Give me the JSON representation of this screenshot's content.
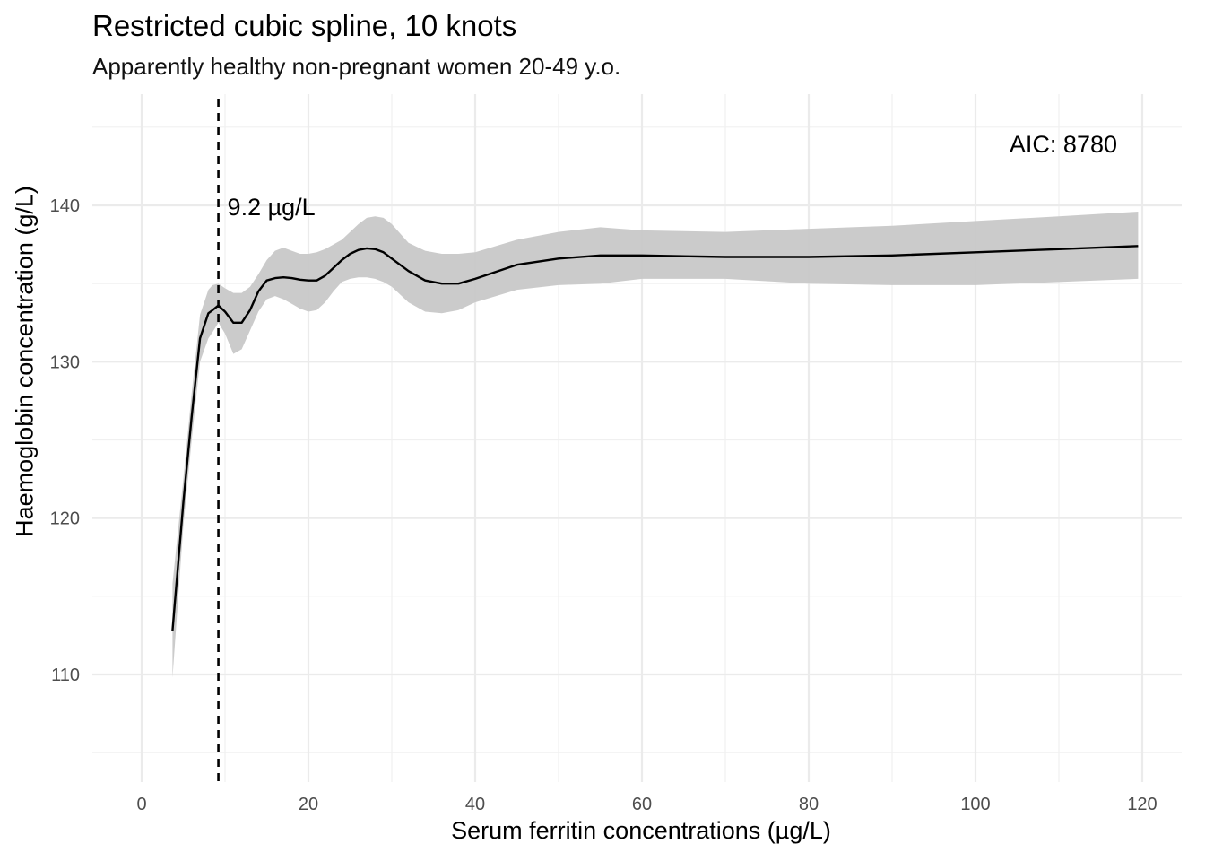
{
  "chart_data": {
    "type": "line",
    "title": "Restricted cubic spline, 10 knots",
    "subtitle": "Apparently healthy non-pregnant women 20-49 y.o.",
    "xlabel": "Serum ferritin concentrations (µg/L)",
    "ylabel": "Haemoglobin concentration (g/L)",
    "xlim": [
      -6,
      124
    ],
    "ylim": [
      103.5,
      145.5
    ],
    "x_ticks": [
      0,
      20,
      40,
      60,
      80,
      100,
      120
    ],
    "y_ticks": [
      110,
      120,
      130,
      140
    ],
    "grid": true,
    "series": [
      {
        "color": "#000000",
        "x": [
          3.7,
          5,
          6,
          7,
          8,
          8.5,
          9.2,
          10,
          11,
          12,
          13,
          14,
          15,
          16,
          17,
          18,
          19,
          20,
          21,
          22,
          23,
          24,
          25,
          26,
          27,
          28,
          29,
          30,
          32,
          34,
          36,
          38,
          40,
          45,
          50,
          55,
          60,
          70,
          80,
          90,
          100,
          110,
          119.5
        ],
        "y": [
          112.8,
          121.0,
          126.5,
          131.5,
          133.1,
          133.3,
          133.6,
          133.2,
          132.5,
          132.5,
          133.3,
          134.5,
          135.2,
          135.35,
          135.4,
          135.35,
          135.25,
          135.2,
          135.2,
          135.5,
          136.0,
          136.5,
          136.9,
          137.15,
          137.25,
          137.2,
          137.0,
          136.6,
          135.8,
          135.2,
          135.0,
          135.0,
          135.3,
          136.2,
          136.6,
          136.8,
          136.8,
          136.7,
          136.7,
          136.8,
          137.0,
          137.2,
          137.4
        ]
      }
    ],
    "confidence_band": {
      "color": "#c8c8c8",
      "x": [
        3.7,
        5,
        6,
        7,
        8,
        8.5,
        9.2,
        10,
        11,
        12,
        13,
        14,
        15,
        16,
        17,
        18,
        19,
        20,
        21,
        22,
        23,
        24,
        25,
        26,
        27,
        28,
        29,
        30,
        32,
        34,
        36,
        38,
        40,
        45,
        50,
        55,
        60,
        70,
        80,
        90,
        100,
        110,
        119.5
      ],
      "lower": [
        109.8,
        119.5,
        125.0,
        130.0,
        131.5,
        131.9,
        132.5,
        131.8,
        130.5,
        130.8,
        132.0,
        133.2,
        134.0,
        134.2,
        134.0,
        133.7,
        133.4,
        133.2,
        133.3,
        133.8,
        134.5,
        135.1,
        135.3,
        135.4,
        135.4,
        135.3,
        135.1,
        134.8,
        133.8,
        133.2,
        133.1,
        133.3,
        133.8,
        134.6,
        134.9,
        135.0,
        135.3,
        135.3,
        135.0,
        134.9,
        134.9,
        135.1,
        135.3
      ],
      "upper": [
        115.8,
        122.5,
        128.0,
        133.0,
        134.6,
        134.9,
        135.0,
        134.7,
        134.4,
        134.4,
        134.8,
        135.6,
        136.5,
        137.1,
        137.3,
        137.1,
        136.9,
        136.9,
        137.0,
        137.2,
        137.5,
        137.8,
        138.3,
        138.8,
        139.2,
        139.3,
        139.2,
        138.8,
        137.6,
        137.1,
        136.9,
        136.9,
        137.0,
        137.8,
        138.3,
        138.6,
        138.4,
        138.3,
        138.5,
        138.7,
        139.0,
        139.3,
        139.6
      ]
    },
    "annotations": [
      {
        "type": "vline",
        "x": 9.2,
        "style": "dashed",
        "label": "9.2 µg/L"
      },
      {
        "type": "text",
        "label": "AIC: 8780"
      }
    ]
  }
}
